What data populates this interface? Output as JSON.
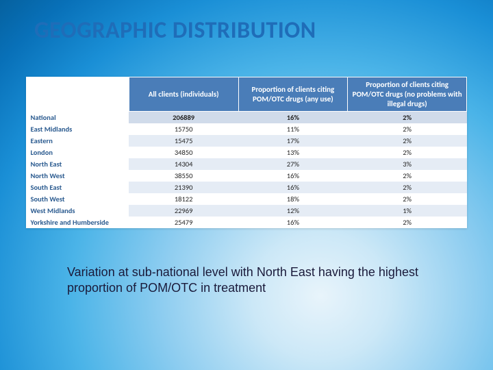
{
  "title": "GEOGRAPHIC DISTRIBUTION",
  "caption": "Variation at sub-national level with North East having the highest proportion of POM/OTC in treatment",
  "table": {
    "header_bg": "#4a7db8",
    "header_fg": "#ffffff",
    "rowlabel_color": "#2a5a8f",
    "first_row_bg": "#d0dbea",
    "even_row_bg": "#e5ecf5",
    "odd_row_bg": "#ffffff",
    "font_size_header": 11,
    "font_size_body": 10.5,
    "columns": [
      "",
      "All clients (individuals)",
      "Proportion of clients citing POM/OTC drugs (any use)",
      "Proportion of clients citing POM/OTC drugs (no problems with illegal  drugs)"
    ],
    "rows": [
      {
        "label": "National",
        "c1": "206889",
        "c2": "16%",
        "c3": "2%"
      },
      {
        "label": "East Midlands",
        "c1": "15750",
        "c2": "11%",
        "c3": "2%"
      },
      {
        "label": "Eastern",
        "c1": "15475",
        "c2": "17%",
        "c3": "2%"
      },
      {
        "label": "London",
        "c1": "34850",
        "c2": "13%",
        "c3": "2%"
      },
      {
        "label": "North East",
        "c1": "14304",
        "c2": "27%",
        "c3": "3%"
      },
      {
        "label": "North West",
        "c1": "38550",
        "c2": "16%",
        "c3": "2%"
      },
      {
        "label": "South East",
        "c1": "21390",
        "c2": "16%",
        "c3": "2%"
      },
      {
        "label": "South West",
        "c1": "18122",
        "c2": "18%",
        "c3": "2%"
      },
      {
        "label": "West Midlands",
        "c1": "22969",
        "c2": "12%",
        "c3": "1%"
      },
      {
        "label": "Yorkshire and Humberside",
        "c1": "25479",
        "c2": "16%",
        "c3": "2%"
      }
    ]
  }
}
